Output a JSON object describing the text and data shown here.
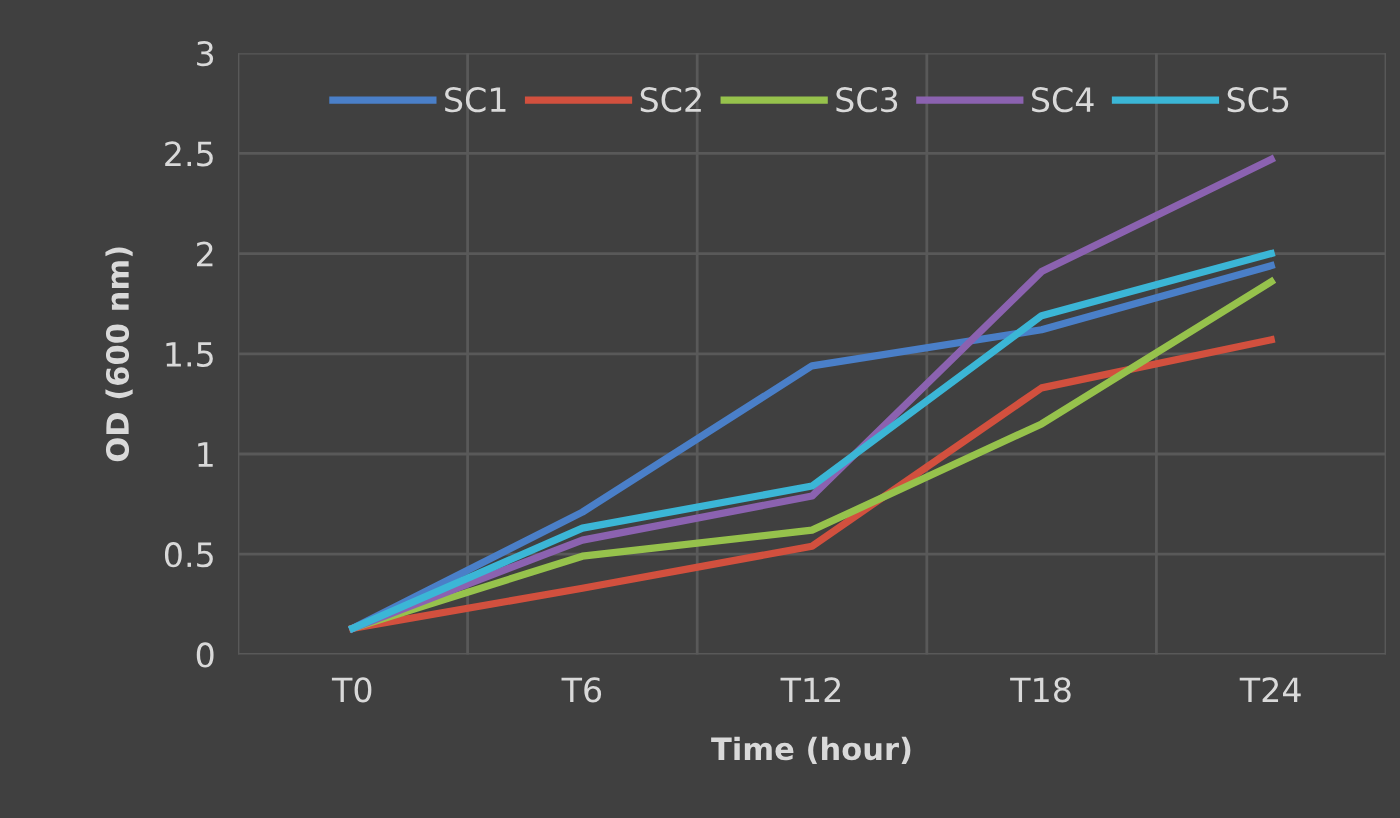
{
  "chart_data": {
    "type": "line",
    "xlabel": "Time (hour)",
    "ylabel": "OD (600 nm)",
    "categories": [
      "T0",
      "T6",
      "T12",
      "T18",
      "T24"
    ],
    "series": [
      {
        "name": "SC1",
        "color": "#4a7fc8",
        "values": [
          0.13,
          0.71,
          1.44,
          1.62,
          1.94
        ]
      },
      {
        "name": "SC2",
        "color": "#d2503e",
        "values": [
          0.13,
          0.33,
          0.54,
          1.33,
          1.57
        ]
      },
      {
        "name": "SC3",
        "color": "#96c24c",
        "values": [
          0.13,
          0.49,
          0.62,
          1.15,
          1.86
        ]
      },
      {
        "name": "SC4",
        "color": "#8b62b0",
        "values": [
          0.13,
          0.57,
          0.79,
          1.91,
          2.47
        ]
      },
      {
        "name": "SC5",
        "color": "#3bb6d6",
        "values": [
          0.13,
          0.63,
          0.84,
          1.69,
          2.0
        ]
      }
    ],
    "ylim": [
      0,
      3
    ],
    "yticks": [
      0,
      0.5,
      1,
      1.5,
      2,
      2.5,
      3
    ],
    "grid": true,
    "legend": "top",
    "marker": "none",
    "line_style": "solid"
  }
}
